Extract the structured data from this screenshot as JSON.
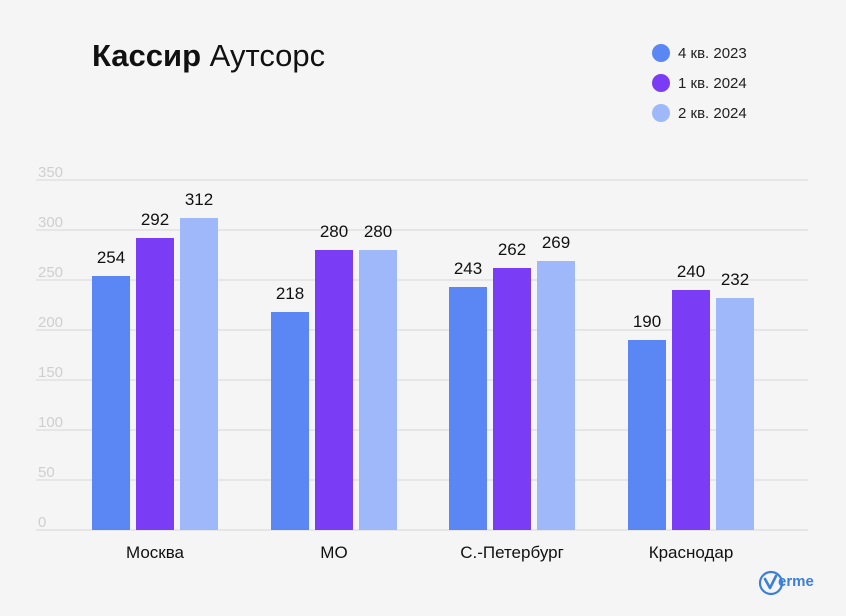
{
  "title": {
    "bold": "Кассир",
    "regular": "Аутсорс"
  },
  "logo_text": "erme",
  "chart_data": {
    "type": "bar",
    "categories": [
      "Москва",
      "МО",
      "С.-Петербург",
      "Краснодар"
    ],
    "series": [
      {
        "name": "4 кв. 2023",
        "values": [
          254,
          218,
          243,
          190
        ],
        "color": "#5b87f5"
      },
      {
        "name": "1 кв. 2024",
        "values": [
          292,
          280,
          262,
          240
        ],
        "color": "#7b3cf5"
      },
      {
        "name": "2 кв. 2024",
        "values": [
          312,
          280,
          269,
          232
        ],
        "color": "#9fb8fa"
      }
    ],
    "ylim": [
      0,
      350
    ],
    "yticks": [
      0,
      50,
      100,
      150,
      200,
      250,
      300,
      350
    ],
    "grid": true,
    "legend_position": "top-right",
    "xlabel": "",
    "ylabel": ""
  }
}
